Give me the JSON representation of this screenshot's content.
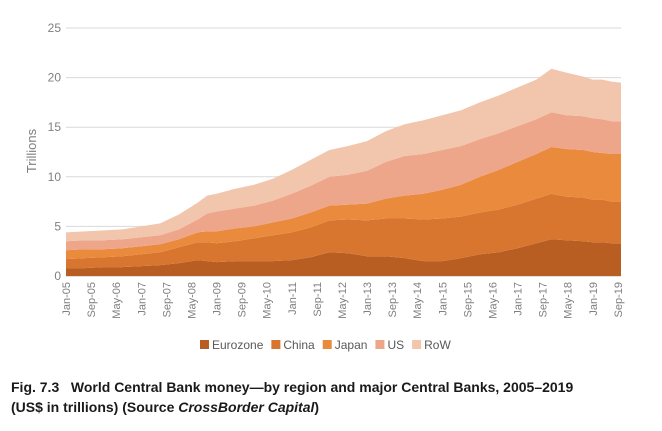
{
  "chart_data": {
    "type": "area",
    "stacked": true,
    "ylabel": "Trillions",
    "ylim": [
      0,
      25
    ],
    "yticks": [
      0,
      5,
      10,
      15,
      20,
      25
    ],
    "x_start": 2005.0,
    "x_end": 2019.75,
    "x_tick_labels": [
      "Jan-05",
      "Sep-05",
      "May-06",
      "Jan-07",
      "Sep-07",
      "May-08",
      "Jan-09",
      "Sep-09",
      "May-10",
      "Jan-11",
      "Sep-11",
      "May-12",
      "Jan-13",
      "Sep-13",
      "May-14",
      "Jan-15",
      "Sep-15",
      "May-16",
      "Jan-17",
      "Sep-17",
      "May-18",
      "Jan-19",
      "Sep-19"
    ],
    "x": [
      2005.0,
      2005.5,
      2006.0,
      2006.5,
      2007.0,
      2007.5,
      2008.0,
      2008.5,
      2008.75,
      2009.0,
      2009.5,
      2010.0,
      2010.5,
      2011.0,
      2011.5,
      2012.0,
      2012.5,
      2013.0,
      2013.5,
      2014.0,
      2014.5,
      2015.0,
      2015.5,
      2016.0,
      2016.5,
      2017.0,
      2017.5,
      2017.9,
      2018.3,
      2018.75,
      2019.0,
      2019.25,
      2019.5,
      2019.75
    ],
    "series": [
      {
        "name": "Eurozone",
        "color": "#b95e22",
        "values": [
          0.8,
          0.8,
          0.9,
          0.9,
          1.0,
          1.1,
          1.3,
          1.6,
          1.5,
          1.4,
          1.5,
          1.5,
          1.5,
          1.6,
          1.9,
          2.4,
          2.3,
          2.0,
          2.0,
          1.8,
          1.5,
          1.5,
          1.8,
          2.2,
          2.4,
          2.8,
          3.3,
          3.7,
          3.6,
          3.5,
          3.4,
          3.4,
          3.3,
          3.3
        ]
      },
      {
        "name": "China",
        "color": "#d8762f",
        "values": [
          0.9,
          1.0,
          1.0,
          1.1,
          1.2,
          1.3,
          1.6,
          1.8,
          1.9,
          1.9,
          2.0,
          2.3,
          2.6,
          2.8,
          3.0,
          3.2,
          3.4,
          3.6,
          3.8,
          4.0,
          4.2,
          4.3,
          4.2,
          4.2,
          4.3,
          4.4,
          4.5,
          4.6,
          4.4,
          4.4,
          4.3,
          4.3,
          4.2,
          4.2
        ]
      },
      {
        "name": "Japan",
        "color": "#ea8a3c",
        "values": [
          0.9,
          0.9,
          0.8,
          0.8,
          0.8,
          0.8,
          0.8,
          1.0,
          1.1,
          1.2,
          1.3,
          1.2,
          1.3,
          1.4,
          1.5,
          1.5,
          1.5,
          1.7,
          2.0,
          2.3,
          2.6,
          2.9,
          3.2,
          3.6,
          4.0,
          4.3,
          4.5,
          4.7,
          4.8,
          4.8,
          4.8,
          4.7,
          4.8,
          4.8
        ]
      },
      {
        "name": "US",
        "color": "#eea68a",
        "values": [
          0.9,
          0.9,
          0.9,
          0.9,
          0.9,
          0.9,
          1.0,
          1.3,
          1.8,
          2.0,
          2.0,
          2.1,
          2.2,
          2.5,
          2.7,
          2.9,
          3.0,
          3.3,
          3.7,
          4.0,
          4.0,
          4.0,
          3.9,
          3.8,
          3.7,
          3.6,
          3.5,
          3.5,
          3.4,
          3.4,
          3.4,
          3.4,
          3.3,
          3.3
        ]
      },
      {
        "name": "RoW",
        "color": "#f2c5ad",
        "values": [
          0.9,
          0.9,
          1.0,
          1.0,
          1.1,
          1.2,
          1.5,
          1.7,
          1.8,
          1.8,
          2.0,
          2.1,
          2.2,
          2.4,
          2.6,
          2.7,
          2.9,
          3.0,
          3.1,
          3.2,
          3.4,
          3.5,
          3.6,
          3.7,
          3.8,
          3.9,
          4.0,
          4.4,
          4.3,
          4.0,
          3.9,
          4.0,
          4.0,
          3.9
        ]
      }
    ],
    "legend_position": "bottom-center"
  },
  "caption": {
    "figure_number": "Fig. 7.3",
    "title": "World Central Bank money—by region and major Central Banks, 2005–2019",
    "units": "(US$ in trillions) (Source ",
    "source_name": "CrossBorder Capital",
    "closing": ")"
  }
}
